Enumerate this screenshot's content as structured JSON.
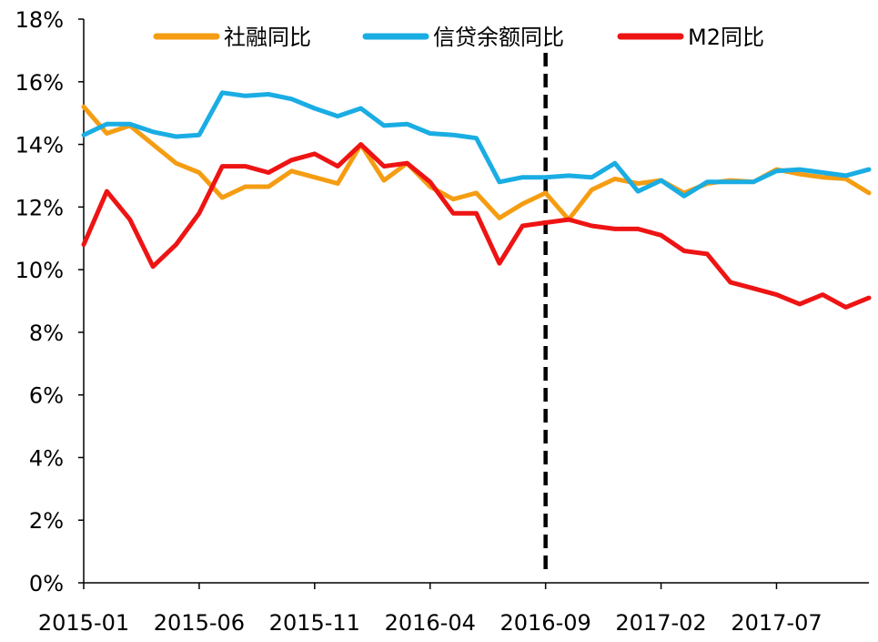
{
  "chart_data": {
    "type": "line",
    "title": "",
    "xlabel": "",
    "ylabel": "",
    "ylim": [
      0,
      18
    ],
    "y_ticks": [
      "0%",
      "2%",
      "4%",
      "6%",
      "8%",
      "10%",
      "12%",
      "14%",
      "16%",
      "18%"
    ],
    "x_tick_labels": [
      "2015-01",
      "2015-06",
      "2015-11",
      "2016-04",
      "2016-09",
      "2017-02",
      "2017-07"
    ],
    "x": [
      "2015-01",
      "2015-02",
      "2015-03",
      "2015-04",
      "2015-05",
      "2015-06",
      "2015-07",
      "2015-08",
      "2015-09",
      "2015-10",
      "2015-11",
      "2015-12",
      "2016-01",
      "2016-02",
      "2016-03",
      "2016-04",
      "2016-05",
      "2016-06",
      "2016-07",
      "2016-08",
      "2016-09",
      "2016-10",
      "2016-11",
      "2016-12",
      "2017-01",
      "2017-02",
      "2017-03",
      "2017-04",
      "2017-05",
      "2017-06",
      "2017-07",
      "2017-08",
      "2017-09",
      "2017-10",
      "2017-11"
    ],
    "legend_position": "top",
    "grid": false,
    "vertical_marker": {
      "x": "2016-09",
      "style": "dashed",
      "color": "#000000"
    },
    "series": [
      {
        "name": "社融同比",
        "color": "#F59D12",
        "values": [
          15.2,
          14.35,
          14.6,
          14.0,
          13.4,
          13.1,
          12.3,
          12.65,
          12.65,
          13.15,
          12.95,
          12.75,
          14.0,
          12.85,
          13.4,
          12.65,
          12.25,
          12.45,
          11.65,
          12.1,
          12.45,
          11.6,
          12.55,
          12.9,
          12.75,
          12.85,
          12.45,
          12.75,
          12.85,
          12.8,
          13.2,
          13.05,
          12.95,
          12.9,
          12.45
        ]
      },
      {
        "name": "信贷余额同比",
        "color": "#1AADE3",
        "values": [
          14.3,
          14.65,
          14.65,
          14.4,
          14.25,
          14.3,
          15.65,
          15.55,
          15.6,
          15.45,
          15.15,
          14.9,
          15.15,
          14.6,
          14.65,
          14.35,
          14.3,
          14.2,
          12.8,
          12.95,
          12.95,
          13.0,
          12.95,
          13.4,
          12.5,
          12.85,
          12.35,
          12.8,
          12.8,
          12.8,
          13.15,
          13.2,
          13.1,
          13.0,
          13.2
        ]
      },
      {
        "name": "M2同比",
        "color": "#EE1414",
        "values": [
          10.8,
          12.5,
          11.6,
          10.1,
          10.8,
          11.8,
          13.3,
          13.3,
          13.1,
          13.5,
          13.7,
          13.3,
          14.0,
          13.3,
          13.4,
          12.8,
          11.8,
          11.8,
          10.2,
          11.4,
          11.5,
          11.6,
          11.4,
          11.3,
          11.3,
          11.1,
          10.6,
          10.5,
          9.6,
          9.4,
          9.2,
          8.9,
          9.2,
          8.8,
          9.1
        ]
      }
    ]
  }
}
